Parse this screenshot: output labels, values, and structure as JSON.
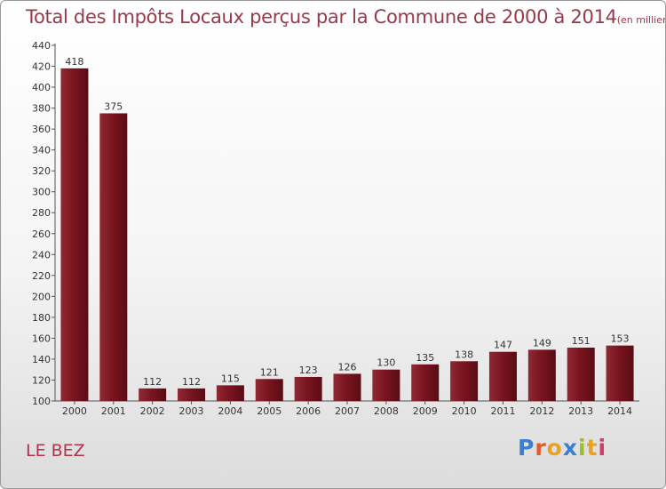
{
  "header": {
    "title": "Total des Impôts Locaux perçus par la Commune de 2000 à 2014",
    "unit": "(en milliers d'€)"
  },
  "footer": {
    "commune": "LE BEZ",
    "logo_text": "Proxiti",
    "logo_colors": [
      "#3a7fd0",
      "#e25a2a",
      "#e8a21f",
      "#3a7fd0",
      "#9bbf2a",
      "#e8a21f",
      "#d23b64"
    ]
  },
  "chart_data": {
    "type": "bar",
    "categories": [
      "2000",
      "2001",
      "2002",
      "2003",
      "2004",
      "2005",
      "2006",
      "2007",
      "2008",
      "2009",
      "2010",
      "2011",
      "2012",
      "2013",
      "2014"
    ],
    "values": [
      418,
      375,
      112,
      112,
      115,
      121,
      123,
      126,
      130,
      135,
      138,
      147,
      149,
      151,
      153
    ],
    "ylim": [
      100,
      440
    ],
    "yticks": [
      100,
      120,
      140,
      160,
      180,
      200,
      220,
      240,
      260,
      280,
      300,
      320,
      340,
      360,
      380,
      400,
      420,
      440
    ],
    "grid": false,
    "bar_color": "#7a1520",
    "xlabel": "",
    "ylabel": ""
  }
}
